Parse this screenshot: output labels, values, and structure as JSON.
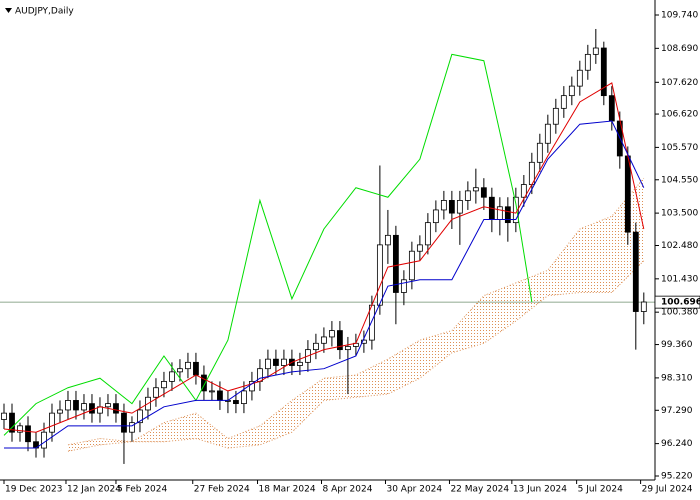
{
  "chart_data": {
    "type": "candlestick",
    "title": "AUDJPY,Daily",
    "ylim": [
      95.22,
      109.74
    ],
    "yticks": [
      {
        "value": 109.74,
        "label": "109.740"
      },
      {
        "value": 108.69,
        "label": "108.690"
      },
      {
        "value": 107.62,
        "label": "107.620"
      },
      {
        "value": 106.62,
        "label": "106.620"
      },
      {
        "value": 105.57,
        "label": "105.570"
      },
      {
        "value": 104.55,
        "label": "104.550"
      },
      {
        "value": 103.5,
        "label": "103.500"
      },
      {
        "value": 102.48,
        "label": "102.480"
      },
      {
        "value": 101.43,
        "label": "101.430"
      },
      {
        "value": 100.38,
        "label": "100.380"
      },
      {
        "value": 99.36,
        "label": "99.360"
      },
      {
        "value": 98.31,
        "label": "98.310"
      },
      {
        "value": 97.29,
        "label": "97.290"
      },
      {
        "value": 96.24,
        "label": "96.240"
      },
      {
        "value": 95.22,
        "label": "95.220"
      }
    ],
    "xlim": [
      -0.5,
      81.4
    ],
    "xticks": [
      {
        "value": 0,
        "label": "19 Dec 2023"
      },
      {
        "value": 7.75,
        "label": "12 Jan 2024"
      },
      {
        "value": 14,
        "label": "5 Feb 2024"
      },
      {
        "value": 23.6,
        "label": "27 Feb 2024"
      },
      {
        "value": 31.7,
        "label": "18 Mar 2024"
      },
      {
        "value": 39.7,
        "label": "8 Apr 2024"
      },
      {
        "value": 47.7,
        "label": "30 Apr 2024"
      },
      {
        "value": 55.7,
        "label": "22 May 2024"
      },
      {
        "value": 63.5,
        "label": "13 Jun 2024"
      },
      {
        "value": 71.6,
        "label": "5 Jul 2024"
      },
      {
        "value": 79.6,
        "label": "29 Jul 2024"
      }
    ],
    "open": [
      97.0,
      97.2,
      96.6,
      96.8,
      96.3,
      96.1,
      96.6,
      97.2,
      97.3,
      97.6,
      97.3,
      97.5,
      97.2,
      97.4,
      97.5,
      97.2,
      96.6,
      96.9,
      97.3,
      97.7,
      98.0,
      98.2,
      98.5,
      98.6,
      98.8,
      98.4,
      97.9,
      97.9,
      97.6,
      97.6,
      97.5,
      97.9,
      98.2,
      98.6,
      98.9,
      98.7,
      98.9,
      98.7,
      98.8,
      99.2,
      99.4,
      99.6,
      99.8,
      99.2,
      99.3,
      99.4,
      99.5,
      100.6,
      102.5,
      102.8,
      101.0,
      101.4,
      102.3,
      102.5,
      103.2,
      103.6,
      103.9,
      103.5,
      103.9,
      104.2,
      104.3,
      104.0,
      103.3,
      103.7,
      103.2,
      104.0,
      104.4,
      105.1,
      105.7,
      106.3,
      106.8,
      107.2,
      107.5,
      108.0,
      108.5,
      108.7,
      107.2,
      106.4,
      105.3,
      102.9,
      100.4
    ],
    "high": [
      97.5,
      97.5,
      96.9,
      97.1,
      96.6,
      96.9,
      97.5,
      97.6,
      97.9,
      97.9,
      97.8,
      97.8,
      97.7,
      97.8,
      97.8,
      97.5,
      97.1,
      97.6,
      98.0,
      98.3,
      98.5,
      98.8,
      98.9,
      99.1,
      99.1,
      98.7,
      98.2,
      98.2,
      97.9,
      97.9,
      98.2,
      98.5,
      98.9,
      99.2,
      99.2,
      99.2,
      99.2,
      99.1,
      99.5,
      99.7,
      99.9,
      100.1,
      100.1,
      99.6,
      99.7,
      99.8,
      100.9,
      105.0,
      103.6,
      103.1,
      101.7,
      102.6,
      102.8,
      103.5,
      103.9,
      104.2,
      104.2,
      104.2,
      104.5,
      104.9,
      104.6,
      104.3,
      104.0,
      104.0,
      104.3,
      104.7,
      105.4,
      106.0,
      106.6,
      107.1,
      107.5,
      107.8,
      108.3,
      108.8,
      109.3,
      108.9,
      107.5,
      106.7,
      105.6,
      103.2,
      101.0
    ],
    "low": [
      96.7,
      96.3,
      96.3,
      96.0,
      95.8,
      95.8,
      96.3,
      96.9,
      97.0,
      97.0,
      97.0,
      96.9,
      96.9,
      97.1,
      96.9,
      95.6,
      96.3,
      96.6,
      97.0,
      97.4,
      97.7,
      97.9,
      98.2,
      98.3,
      98.1,
      97.6,
      97.6,
      97.3,
      97.2,
      97.2,
      97.2,
      97.6,
      97.9,
      98.3,
      98.4,
      98.4,
      98.4,
      98.4,
      98.5,
      98.9,
      99.1,
      99.3,
      98.9,
      97.8,
      99.0,
      99.1,
      99.2,
      100.3,
      101.9,
      100.0,
      100.6,
      101.1,
      102.0,
      102.2,
      102.9,
      103.3,
      103.0,
      102.5,
      103.6,
      103.8,
      103.6,
      102.9,
      102.8,
      102.6,
      102.9,
      103.7,
      104.1,
      104.8,
      105.4,
      106.0,
      106.5,
      106.9,
      107.2,
      107.7,
      108.2,
      106.9,
      106.1,
      104.9,
      102.5,
      99.2,
      100.0
    ],
    "close": [
      97.2,
      96.6,
      96.8,
      96.3,
      96.1,
      96.6,
      97.2,
      97.3,
      97.6,
      97.3,
      97.5,
      97.2,
      97.4,
      97.5,
      97.2,
      96.6,
      96.9,
      97.3,
      97.7,
      98.0,
      98.2,
      98.5,
      98.6,
      98.8,
      98.4,
      97.9,
      97.9,
      97.6,
      97.6,
      97.5,
      97.9,
      98.2,
      98.6,
      98.9,
      98.7,
      98.9,
      98.7,
      98.8,
      99.2,
      99.4,
      99.6,
      99.8,
      99.2,
      99.3,
      99.4,
      99.5,
      100.6,
      102.5,
      102.8,
      101.0,
      101.4,
      102.3,
      102.5,
      103.2,
      103.6,
      103.9,
      103.5,
      103.9,
      104.2,
      104.3,
      104.0,
      103.3,
      103.7,
      103.2,
      104.0,
      104.4,
      105.1,
      105.7,
      106.3,
      106.8,
      107.2,
      107.5,
      108.0,
      108.5,
      108.7,
      107.2,
      106.4,
      105.3,
      102.9,
      100.4,
      100.7
    ],
    "cloud": {
      "color": "#dd9055",
      "x": [
        8,
        12,
        16,
        20,
        24,
        28,
        32,
        36,
        40,
        44,
        48,
        52,
        56,
        60,
        64,
        68,
        72,
        76,
        80
      ],
      "span_a": [
        96.0,
        96.2,
        96.3,
        96.9,
        97.2,
        96.4,
        96.8,
        97.6,
        98.3,
        98.4,
        98.9,
        99.5,
        99.8,
        100.9,
        101.3,
        101.7,
        103.0,
        103.4,
        104.6
      ],
      "span_b": [
        96.2,
        96.4,
        96.3,
        96.3,
        96.4,
        96.1,
        96.2,
        96.6,
        97.6,
        97.7,
        97.8,
        98.3,
        99.1,
        99.4,
        100.1,
        100.9,
        101.0,
        101.0,
        102.0
      ]
    },
    "series": [
      {
        "color": "#00dd00",
        "x": [
          0,
          4,
          8,
          12,
          16,
          20,
          24,
          28,
          32,
          36,
          40,
          44,
          48,
          52,
          56,
          60,
          64,
          66
        ],
        "values": [
          96.5,
          97.5,
          98.0,
          98.3,
          97.5,
          99.0,
          97.6,
          99.5,
          103.9,
          100.8,
          103.0,
          104.3,
          104.0,
          105.2,
          108.5,
          108.3,
          103.8,
          100.7
        ]
      },
      {
        "color": "#e00000",
        "x": [
          0,
          4,
          8,
          12,
          16,
          20,
          24,
          28,
          32,
          36,
          40,
          44,
          48,
          52,
          56,
          60,
          64,
          68,
          72,
          76,
          80
        ],
        "values": [
          96.7,
          96.6,
          97.0,
          97.4,
          97.2,
          97.8,
          98.4,
          97.9,
          98.2,
          98.8,
          99.2,
          99.4,
          101.8,
          102.0,
          103.3,
          103.7,
          103.5,
          105.3,
          107.0,
          107.6,
          103.0
        ]
      },
      {
        "color": "#0000cc",
        "x": [
          0,
          4,
          8,
          12,
          16,
          20,
          24,
          28,
          32,
          36,
          40,
          44,
          48,
          52,
          56,
          60,
          64,
          68,
          72,
          76,
          80
        ],
        "values": [
          96.1,
          96.1,
          96.8,
          96.8,
          96.8,
          97.4,
          97.6,
          97.6,
          98.3,
          98.5,
          98.6,
          99.0,
          101.2,
          101.4,
          101.4,
          103.3,
          103.3,
          105.2,
          106.3,
          106.4,
          104.3
        ]
      }
    ],
    "last": {
      "value": 100.696,
      "label": "100.696"
    }
  }
}
